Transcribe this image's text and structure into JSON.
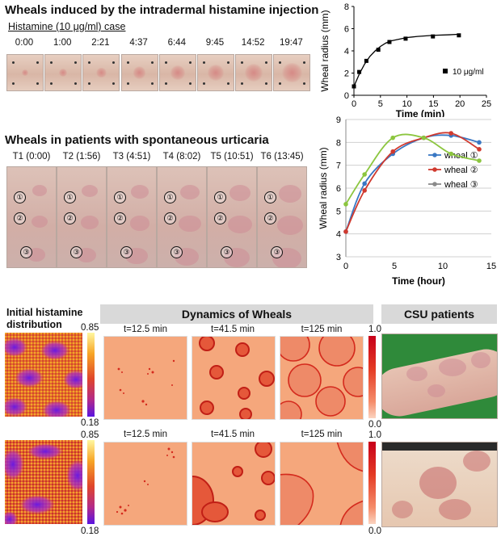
{
  "top": {
    "title": "Wheals induced by the intradermal histamine injection",
    "subtitle": "Histamine (10 μg/ml) case",
    "times": [
      "0:00",
      "1:00",
      "2:21",
      "4:37",
      "6:44",
      "9:45",
      "14:52",
      "19:47"
    ]
  },
  "middle": {
    "title": "Wheals in patients with spontaneous urticaria",
    "times": [
      "T1 (0:00)",
      "T2 (1:56)",
      "T3 (4:51)",
      "T4 (8:02)",
      "T5 (10:51)",
      "T6 (13:45)"
    ],
    "markers": [
      "①",
      "②",
      "③"
    ]
  },
  "bottom": {
    "left_title_line1": "Initial histamine",
    "left_title_line2": "distribution",
    "dynamics_header": "Dynamics of Wheals",
    "csu_header": "CSU patients",
    "init_cbar_max": "0.85",
    "init_cbar_min": "0.18",
    "dyn_cbar_max": "1.0",
    "dyn_cbar_min": "0.0",
    "row1_times": [
      "t=12.5 min",
      "t=41.5 min",
      "t=125 min"
    ],
    "row2_times": [
      "t=12.5 min",
      "t=41.5 min",
      "t=125 min"
    ],
    "colors": {
      "sim_background": "#f5a77c",
      "wheal_red": "#d42a1d",
      "purple": "#8a1fd6",
      "orange": "#f0a020"
    }
  },
  "chart_data": [
    {
      "type": "scatter",
      "xlabel": "Time (min)",
      "ylabel": "Wheal radius (mm)",
      "xlim": [
        0,
        25
      ],
      "ylim": [
        0,
        8
      ],
      "xticks": [
        0,
        5,
        10,
        15,
        20,
        25
      ],
      "yticks": [
        0,
        2,
        4,
        6,
        8
      ],
      "legend_position": "lower-right",
      "series": [
        {
          "name": "10 μg/ml",
          "x": [
            0,
            1,
            2.35,
            4.6,
            6.7,
            9.75,
            14.9,
            19.8
          ],
          "y": [
            0.8,
            2.1,
            3.1,
            4.1,
            4.8,
            5.1,
            5.3,
            5.4
          ],
          "marker": "square",
          "color": "#000000"
        }
      ],
      "fit_curve": {
        "x": [
          0,
          1,
          2,
          3,
          4,
          5,
          6,
          7,
          8,
          10,
          12,
          15,
          18,
          20
        ],
        "y": [
          0.8,
          1.9,
          2.8,
          3.5,
          4.0,
          4.4,
          4.7,
          4.9,
          5.0,
          5.2,
          5.3,
          5.4,
          5.45,
          5.5
        ]
      },
      "grid": false
    },
    {
      "type": "line",
      "xlabel": "Time (hour)",
      "ylabel": "Wheal radius (mm)",
      "xlim": [
        0,
        15
      ],
      "ylim": [
        3,
        9
      ],
      "xticks": [
        0,
        5,
        10,
        15
      ],
      "yticks": [
        3,
        4,
        5,
        6,
        7,
        8,
        9
      ],
      "legend_position": "right",
      "grid": true,
      "series": [
        {
          "name": "wheal ①",
          "color": "#3a78c4",
          "x": [
            0,
            1.93,
            4.85,
            8.03,
            10.85,
            13.75
          ],
          "y": [
            4.1,
            6.2,
            7.5,
            8.2,
            8.3,
            8.0
          ]
        },
        {
          "name": "wheal ②",
          "color": "#d03a2f",
          "x": [
            0,
            1.93,
            4.85,
            8.03,
            10.85,
            13.75
          ],
          "y": [
            4.1,
            5.9,
            7.6,
            8.2,
            8.4,
            7.7
          ]
        },
        {
          "name": "wheal ③",
          "color": "#8a8a8a",
          "x": [
            0,
            1.93,
            4.85,
            8.03,
            10.85,
            13.75
          ],
          "y": [
            5.3,
            6.6,
            8.2,
            8.2,
            7.5,
            7.2
          ],
          "line_color": "#8cc63f"
        }
      ]
    }
  ]
}
